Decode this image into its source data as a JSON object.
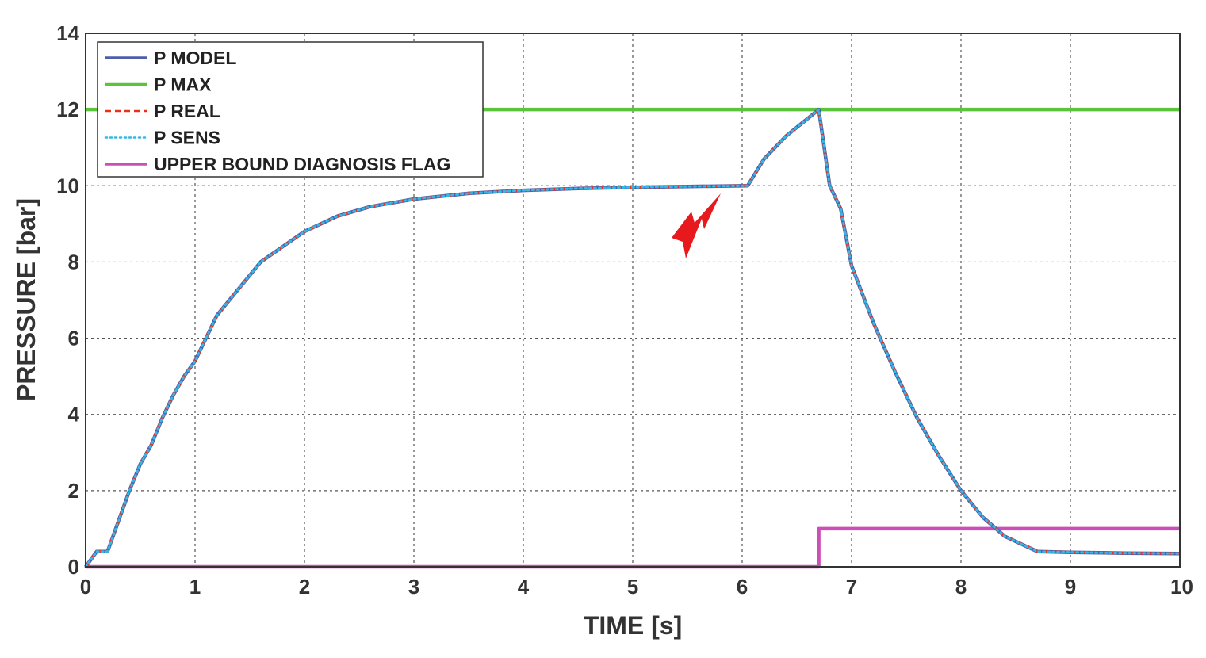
{
  "chart_data": {
    "type": "line",
    "xlabel": "TIME [s]",
    "ylabel": "PRESSURE [bar]",
    "xlim": [
      0,
      10
    ],
    "ylim": [
      0,
      14
    ],
    "xticks": [
      "0",
      "1",
      "2",
      "3",
      "4",
      "5",
      "6",
      "7",
      "8",
      "9",
      "10"
    ],
    "yticks": [
      "0",
      "2",
      "4",
      "6",
      "8",
      "10",
      "12",
      "14"
    ],
    "grid": true,
    "legend_position": "top-left",
    "annotation_icon": "lightning-bolt-icon",
    "annotation_color": "#e8191c",
    "series": [
      {
        "name": "P MODEL",
        "color": "#4e5ea8",
        "style": "solid",
        "x": [
          0,
          0.1,
          0.2,
          0.3,
          0.4,
          0.5,
          0.6,
          0.7,
          0.8,
          0.9,
          1.0,
          1.2,
          1.4,
          1.6,
          1.8,
          2.0,
          2.3,
          2.6,
          3.0,
          3.5,
          4.0,
          4.5,
          5.0,
          5.5,
          6.05,
          6.2,
          6.4,
          6.7,
          6.8,
          6.9,
          7.0,
          7.2,
          7.4,
          7.6,
          7.8,
          8.0,
          8.2,
          8.4,
          8.7,
          9.0,
          9.5,
          10.0
        ],
        "y": [
          0,
          0.4,
          0.4,
          1.2,
          2.0,
          2.7,
          3.2,
          3.9,
          4.5,
          5.0,
          5.4,
          6.6,
          7.3,
          8.0,
          8.4,
          8.8,
          9.2,
          9.45,
          9.65,
          9.8,
          9.88,
          9.93,
          9.96,
          9.98,
          10.0,
          10.7,
          11.3,
          12.0,
          10.0,
          9.4,
          7.9,
          6.4,
          5.1,
          3.9,
          2.9,
          2.0,
          1.3,
          0.8,
          0.4,
          0.38,
          0.36,
          0.35
        ]
      },
      {
        "name": "P MAX",
        "color": "#5cc43b",
        "style": "solid",
        "x": [
          0,
          10
        ],
        "y": [
          12,
          12
        ]
      },
      {
        "name": "P REAL",
        "color": "#e8301c",
        "style": "dashed",
        "x": [
          0,
          0.1,
          0.2,
          0.3,
          0.4,
          0.5,
          0.6,
          0.7,
          0.8,
          0.9,
          1.0,
          1.2,
          1.4,
          1.6,
          1.8,
          2.0,
          2.3,
          2.6,
          3.0,
          3.5,
          4.0,
          4.5,
          5.0,
          5.5,
          6.05,
          6.2,
          6.4,
          6.7,
          6.8,
          6.9,
          7.0,
          7.2,
          7.4,
          7.6,
          7.8,
          8.0,
          8.2,
          8.4,
          8.7,
          9.0,
          9.5,
          10.0
        ],
        "y": [
          0,
          0.4,
          0.4,
          1.2,
          2.0,
          2.7,
          3.2,
          3.9,
          4.5,
          5.0,
          5.4,
          6.6,
          7.3,
          8.0,
          8.4,
          8.8,
          9.2,
          9.45,
          9.65,
          9.8,
          9.88,
          9.93,
          9.96,
          9.98,
          10.0,
          10.7,
          11.3,
          12.0,
          10.0,
          9.4,
          7.9,
          6.4,
          5.1,
          3.9,
          2.9,
          2.0,
          1.3,
          0.8,
          0.4,
          0.38,
          0.36,
          0.35
        ]
      },
      {
        "name": "P SENS",
        "color": "#33b7e8",
        "style": "dotted",
        "x": [
          0,
          0.1,
          0.2,
          0.3,
          0.4,
          0.5,
          0.6,
          0.7,
          0.8,
          0.9,
          1.0,
          1.2,
          1.4,
          1.6,
          1.8,
          2.0,
          2.3,
          2.6,
          3.0,
          3.5,
          4.0,
          4.5,
          5.0,
          5.5,
          6.05,
          6.2,
          6.4,
          6.7,
          6.8,
          6.9,
          7.0,
          7.2,
          7.4,
          7.6,
          7.8,
          8.0,
          8.2,
          8.4,
          8.7,
          9.0,
          9.5,
          10.0
        ],
        "y": [
          0,
          0.4,
          0.4,
          1.2,
          2.0,
          2.7,
          3.2,
          3.9,
          4.5,
          5.0,
          5.4,
          6.6,
          7.3,
          8.0,
          8.4,
          8.8,
          9.2,
          9.45,
          9.65,
          9.8,
          9.88,
          9.93,
          9.96,
          9.98,
          10.0,
          10.7,
          11.3,
          12.0,
          10.0,
          9.4,
          7.9,
          6.4,
          5.1,
          3.9,
          2.9,
          2.0,
          1.3,
          0.8,
          0.4,
          0.38,
          0.36,
          0.35
        ]
      },
      {
        "name": "UPPER BOUND DIAGNOSIS FLAG",
        "color": "#cc4fb8",
        "style": "solid",
        "x": [
          0,
          6.7,
          6.7,
          10
        ],
        "y": [
          0,
          0,
          1,
          1
        ]
      }
    ]
  }
}
